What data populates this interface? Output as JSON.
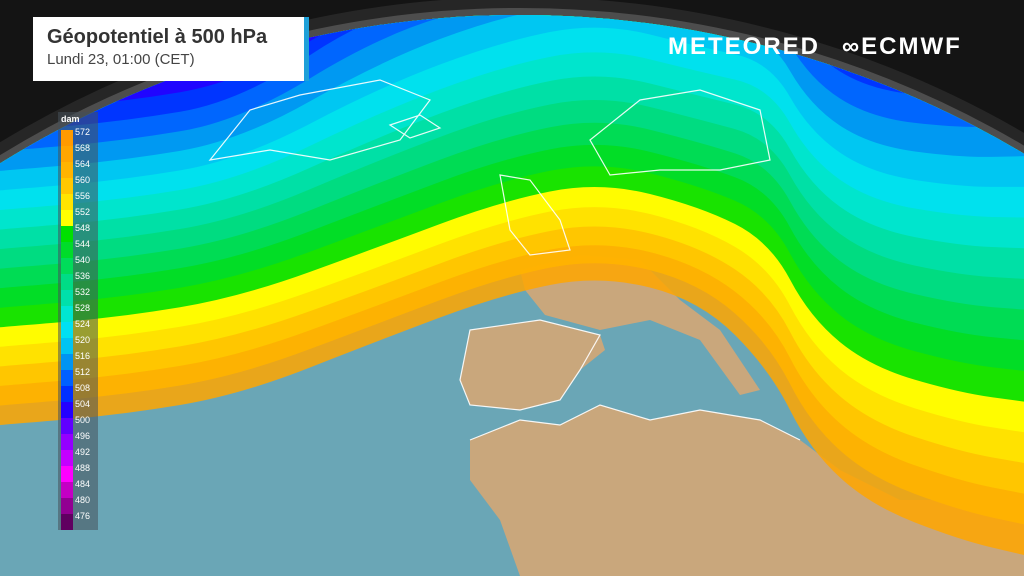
{
  "header": {
    "title": "Géopotentiel à 500 hPa",
    "subtitle": "Lundi 23, 01:00 (CET)"
  },
  "logos": {
    "meteored": "METEORED",
    "ecmwf": "ECMWF"
  },
  "legend": {
    "unit": "dam",
    "items": [
      {
        "label": "572",
        "color": "#ff9a00"
      },
      {
        "label": "568",
        "color": "#ffa600"
      },
      {
        "label": "564",
        "color": "#ffb400"
      },
      {
        "label": "560",
        "color": "#ffc800"
      },
      {
        "label": "556",
        "color": "#ffe400"
      },
      {
        "label": "552",
        "color": "#ffff00"
      },
      {
        "label": "548",
        "color": "#00e000"
      },
      {
        "label": "544",
        "color": "#00dc2a"
      },
      {
        "label": "540",
        "color": "#00dc5a"
      },
      {
        "label": "536",
        "color": "#00dc86"
      },
      {
        "label": "532",
        "color": "#00e0aa"
      },
      {
        "label": "528",
        "color": "#00e6d2"
      },
      {
        "label": "524",
        "color": "#00e0f2"
      },
      {
        "label": "520",
        "color": "#00c4f2"
      },
      {
        "label": "516",
        "color": "#0094f2"
      },
      {
        "label": "512",
        "color": "#0060ff"
      },
      {
        "label": "508",
        "color": "#0030ff"
      },
      {
        "label": "504",
        "color": "#2400ff"
      },
      {
        "label": "500",
        "color": "#6000ff"
      },
      {
        "label": "496",
        "color": "#9400ff"
      },
      {
        "label": "492",
        "color": "#c400ff"
      },
      {
        "label": "488",
        "color": "#ff00ff"
      },
      {
        "label": "484",
        "color": "#c400c4"
      },
      {
        "label": "480",
        "color": "#920092"
      },
      {
        "label": "476",
        "color": "#600060"
      }
    ]
  },
  "colors": {
    "ocean": "#6aa6b6",
    "land": "#c9a77c",
    "border": "#ffffff",
    "accent": "#1ea0d8"
  }
}
